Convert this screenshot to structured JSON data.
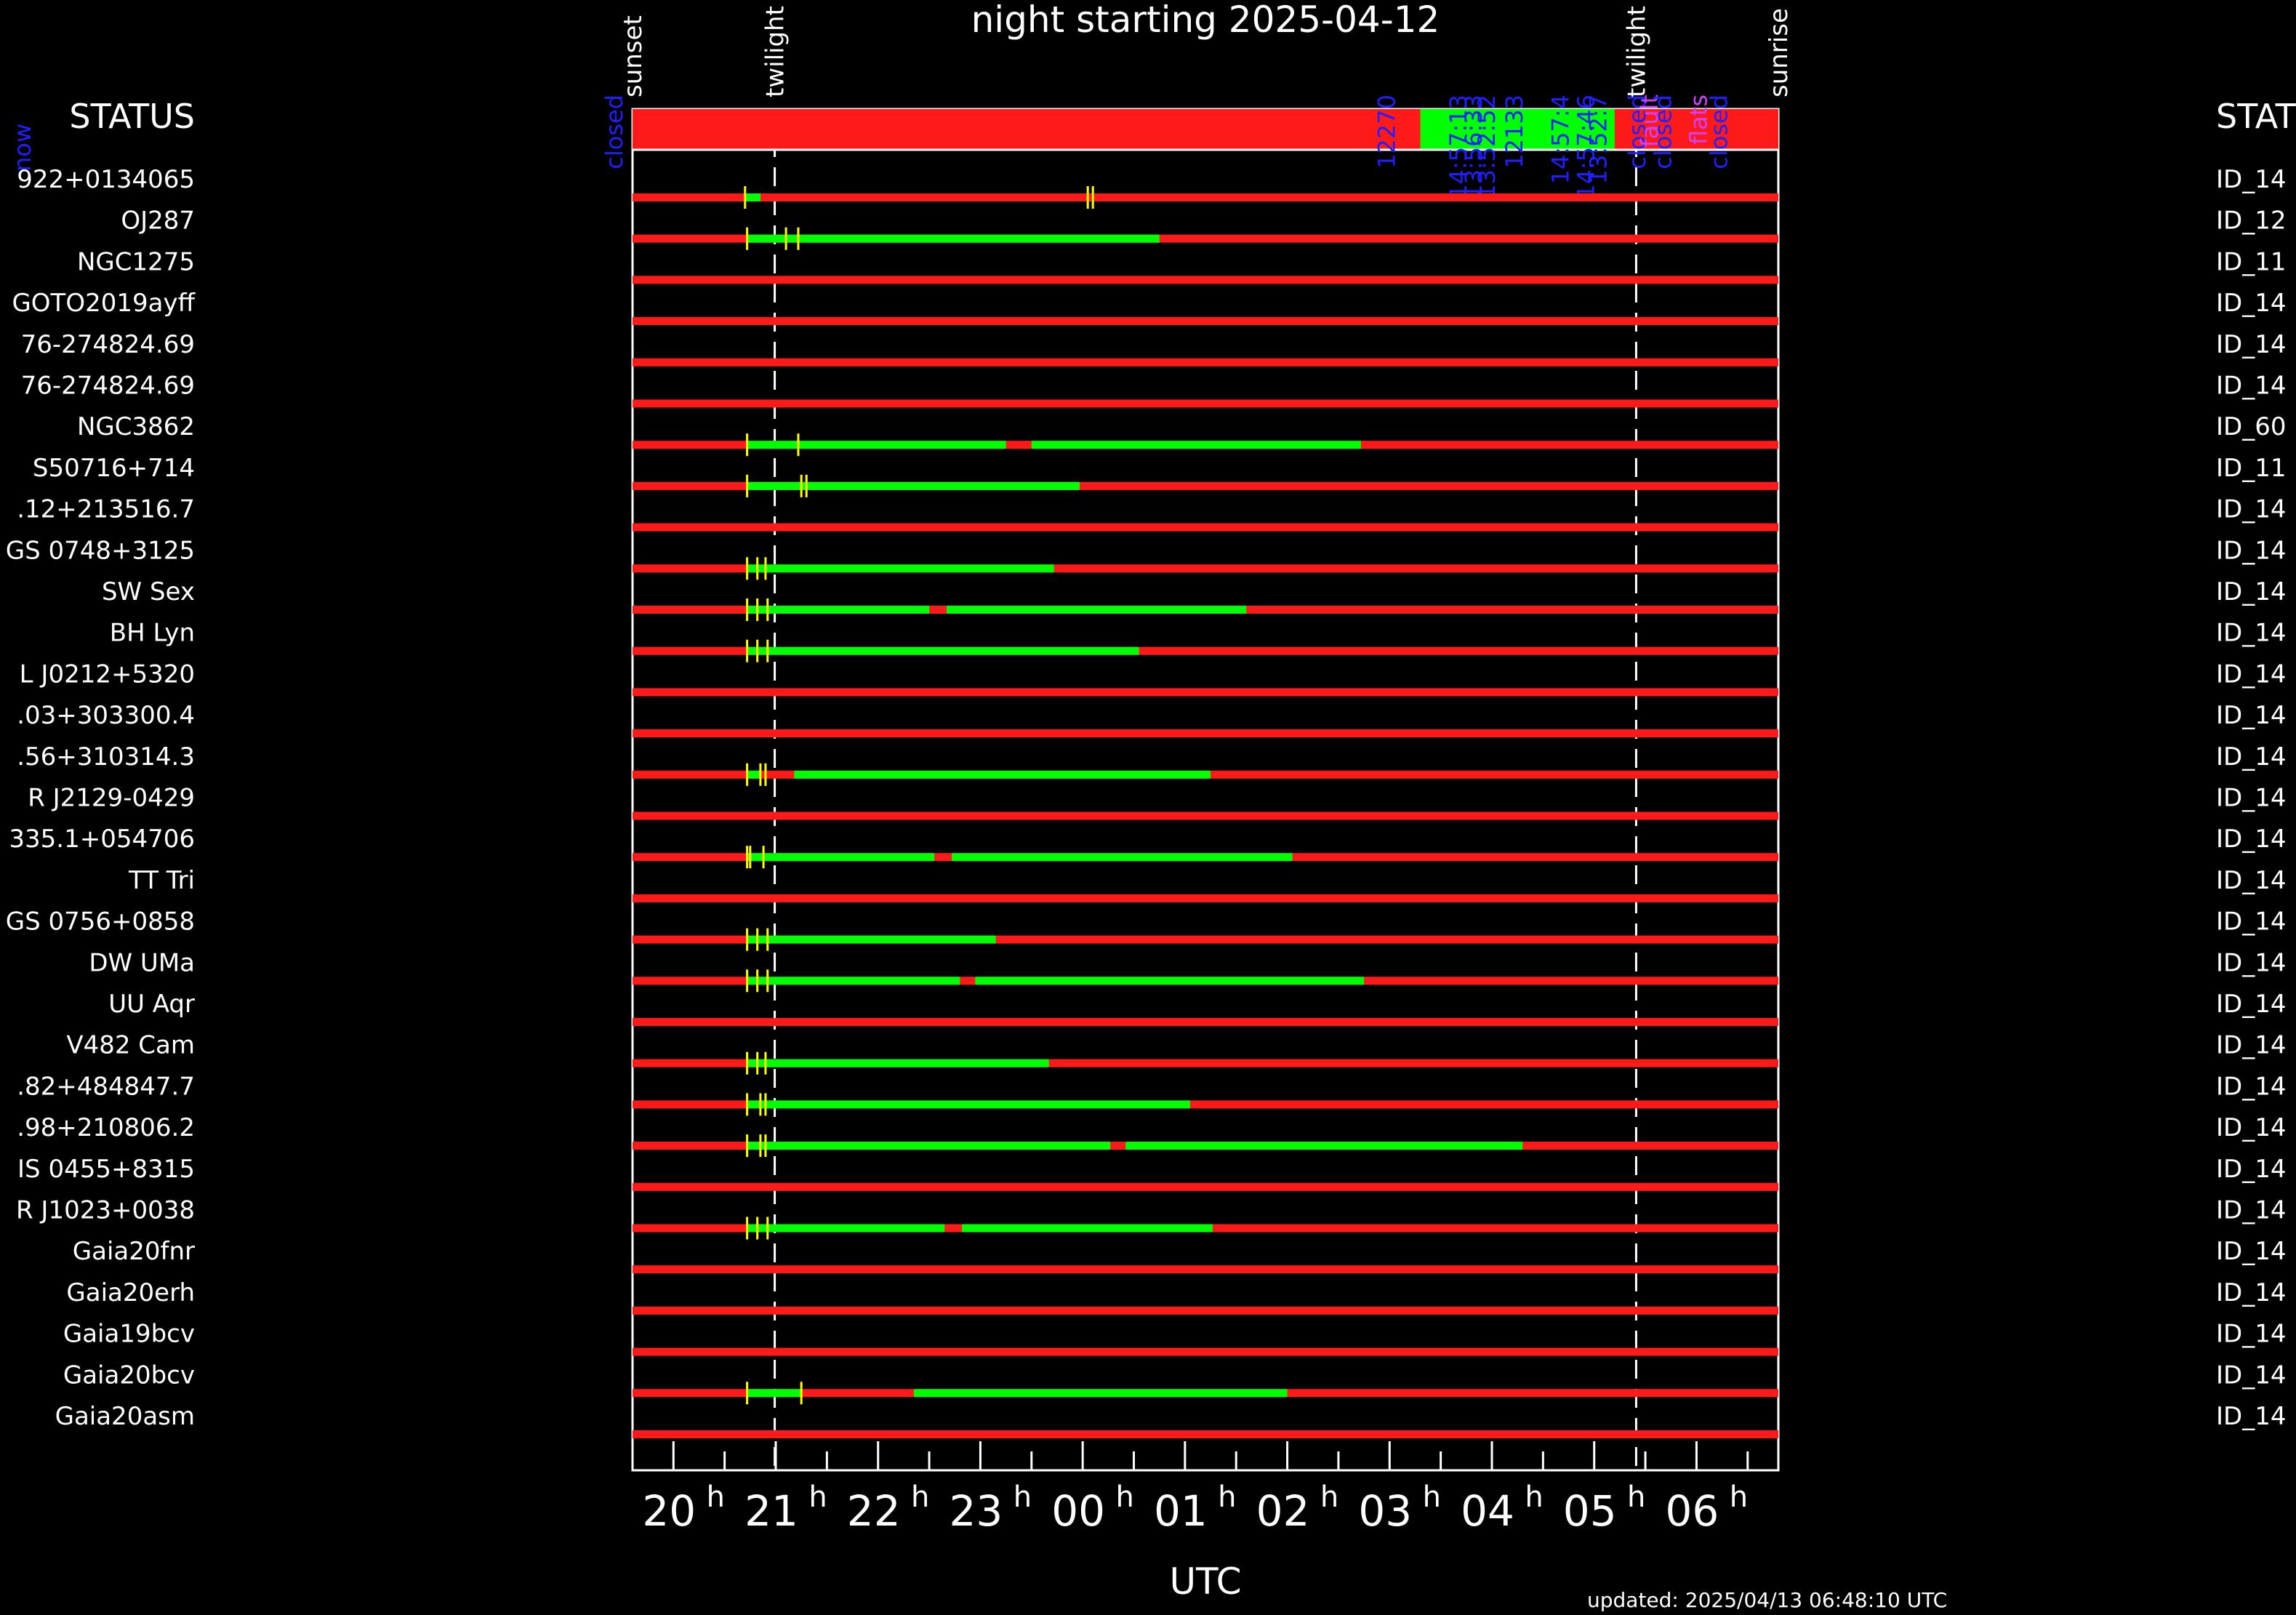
{
  "title": "night starting 2025-04-12",
  "left_header": "STATUS",
  "right_header": "STAT",
  "xlabel": "UTC",
  "updated": "updated: 2025/04/13 06:48:10 UTC",
  "colors": {
    "background": "#000000",
    "unavailable": "#ff1a1a",
    "observed": "#00ff00",
    "tick": "#ffff00",
    "status_label": "#2020ff",
    "axis": "#ffffff"
  },
  "chart_data": {
    "type": "gantt",
    "x_unit": "hours UTC (hours after 24 continue into next day)",
    "xlim": [
      19.6,
      30.8
    ],
    "tick_labels": [
      {
        "hour": 20,
        "text": "20"
      },
      {
        "hour": 21,
        "text": "21"
      },
      {
        "hour": 22,
        "text": "22"
      },
      {
        "hour": 23,
        "text": "23"
      },
      {
        "hour": 24,
        "text": "00"
      },
      {
        "hour": 25,
        "text": "01"
      },
      {
        "hour": 26,
        "text": "02"
      },
      {
        "hour": 27,
        "text": "03"
      },
      {
        "hour": 28,
        "text": "04"
      },
      {
        "hour": 29,
        "text": "05"
      },
      {
        "hour": 30,
        "text": "06"
      }
    ],
    "events": [
      {
        "label": "sunset",
        "hour": 19.6,
        "line": false
      },
      {
        "label": "twilight",
        "hour": 20.99,
        "line": true
      },
      {
        "label": "twilight",
        "hour": 29.41,
        "line": true
      },
      {
        "label": "sunrise",
        "hour": 30.8,
        "line": false
      }
    ],
    "status_bar": {
      "green_segments": [
        [
          27.3,
          29.2
        ]
      ],
      "labels": [
        {
          "text": "closed",
          "hour": 19.5,
          "color": "blue"
        },
        {
          "text": "12270",
          "hour": 27.05,
          "color": "blue"
        },
        {
          "text": "14:57:13",
          "hour": 27.75,
          "color": "blue"
        },
        {
          "text": "13:56:33",
          "hour": 27.9,
          "color": "blue"
        },
        {
          "text": "13:52:52",
          "hour": 28.03,
          "color": "blue"
        },
        {
          "text": "12133",
          "hour": 28.3,
          "color": "blue"
        },
        {
          "text": "14:57:4",
          "hour": 28.75,
          "color": "blue"
        },
        {
          "text": "14:57:46",
          "hour": 29.0,
          "color": "blue"
        },
        {
          "text": "13:52:7",
          "hour": 29.12,
          "color": "blue"
        },
        {
          "text": "closed",
          "hour": 29.5,
          "color": "blue"
        },
        {
          "text": "fault",
          "hour": 29.62,
          "color": "mag"
        },
        {
          "text": "closed",
          "hour": 29.75,
          "color": "blue"
        },
        {
          "text": "flats",
          "hour": 30.1,
          "color": "mag"
        },
        {
          "text": "closed",
          "hour": 30.3,
          "color": "blue"
        }
      ]
    },
    "left_partial_label": "now",
    "targets": [
      {
        "name": "922+0134065",
        "id": "ID_14",
        "green": [
          [
            20.7,
            20.85
          ]
        ],
        "ticks": [
          20.7,
          24.05,
          24.1
        ]
      },
      {
        "name": "OJ287",
        "id": "ID_12",
        "green": [
          [
            20.72,
            24.75
          ]
        ],
        "ticks": [
          20.72,
          21.1,
          21.22
        ]
      },
      {
        "name": "NGC1275",
        "id": "ID_11",
        "green": [],
        "ticks": []
      },
      {
        "name": "GOTO2019ayff",
        "id": "ID_14",
        "green": [],
        "ticks": []
      },
      {
        "name": "76-274824.69",
        "id": "ID_14",
        "green": [],
        "ticks": []
      },
      {
        "name": "76-274824.69",
        "id": "ID_14",
        "green": [],
        "ticks": []
      },
      {
        "name": "NGC3862",
        "id": "ID_60",
        "green": [
          [
            20.72,
            23.25
          ],
          [
            23.5,
            26.72
          ]
        ],
        "ticks": [
          20.72,
          21.22
        ]
      },
      {
        "name": "S50716+714",
        "id": "ID_11",
        "green": [
          [
            20.72,
            23.97
          ]
        ],
        "ticks": [
          20.72,
          21.25,
          21.3
        ]
      },
      {
        "name": ".12+213516.7",
        "id": "ID_14",
        "green": [],
        "ticks": []
      },
      {
        "name": "GS 0748+3125",
        "id": "ID_14",
        "green": [
          [
            20.72,
            23.72
          ]
        ],
        "ticks": [
          20.72,
          20.82,
          20.9
        ]
      },
      {
        "name": "SW Sex",
        "id": "ID_14",
        "green": [
          [
            20.72,
            22.5
          ],
          [
            22.67,
            25.6
          ]
        ],
        "ticks": [
          20.72,
          20.82,
          20.92
        ]
      },
      {
        "name": "BH Lyn",
        "id": "ID_14",
        "green": [
          [
            20.72,
            24.55
          ]
        ],
        "ticks": [
          20.72,
          20.82,
          20.92
        ]
      },
      {
        "name": "L J0212+5320",
        "id": "ID_14",
        "green": [],
        "ticks": []
      },
      {
        "name": ".03+303300.4",
        "id": "ID_14",
        "green": [],
        "ticks": []
      },
      {
        "name": ".56+310314.3",
        "id": "ID_14",
        "green": [
          [
            20.72,
            20.85
          ],
          [
            21.18,
            25.25
          ]
        ],
        "ticks": [
          20.72,
          20.85,
          20.9
        ]
      },
      {
        "name": "R J2129-0429",
        "id": "ID_14",
        "green": [],
        "ticks": []
      },
      {
        "name": "335.1+054706",
        "id": "ID_14",
        "green": [
          [
            20.72,
            22.55
          ],
          [
            22.72,
            26.05
          ]
        ],
        "ticks": [
          20.72,
          20.75,
          20.88
        ]
      },
      {
        "name": "TT Tri",
        "id": "ID_14",
        "green": [],
        "ticks": []
      },
      {
        "name": "GS 0756+0858",
        "id": "ID_14",
        "green": [
          [
            20.72,
            23.15
          ]
        ],
        "ticks": [
          20.72,
          20.82,
          20.92
        ]
      },
      {
        "name": "DW UMa",
        "id": "ID_14",
        "green": [
          [
            20.72,
            22.8
          ],
          [
            22.95,
            26.75
          ]
        ],
        "ticks": [
          20.72,
          20.82,
          20.92
        ]
      },
      {
        "name": "UU Aqr",
        "id": "ID_14",
        "green": [],
        "ticks": []
      },
      {
        "name": "V482 Cam",
        "id": "ID_14",
        "green": [
          [
            20.72,
            23.67
          ]
        ],
        "ticks": [
          20.72,
          20.82,
          20.9
        ]
      },
      {
        "name": ".82+484847.7",
        "id": "ID_14",
        "green": [
          [
            20.72,
            25.05
          ]
        ],
        "ticks": [
          20.72,
          20.85,
          20.9
        ]
      },
      {
        "name": ".98+210806.2",
        "id": "ID_14",
        "green": [
          [
            20.72,
            24.27
          ],
          [
            24.42,
            28.3
          ]
        ],
        "ticks": [
          20.72,
          20.85,
          20.9
        ]
      },
      {
        "name": "IS 0455+8315",
        "id": "ID_14",
        "green": [],
        "ticks": []
      },
      {
        "name": "R J1023+0038",
        "id": "ID_14",
        "green": [
          [
            20.72,
            22.65
          ],
          [
            22.82,
            25.27
          ]
        ],
        "ticks": [
          20.72,
          20.82,
          20.92
        ]
      },
      {
        "name": "Gaia20fnr",
        "id": "ID_14",
        "green": [],
        "ticks": []
      },
      {
        "name": "Gaia20erh",
        "id": "ID_14",
        "green": [],
        "ticks": []
      },
      {
        "name": "Gaia19bcv",
        "id": "ID_14",
        "green": [],
        "ticks": []
      },
      {
        "name": "Gaia20bcv",
        "id": "ID_14",
        "green": [
          [
            20.72,
            21.25
          ],
          [
            22.35,
            26.0
          ]
        ],
        "ticks": [
          20.72,
          21.25
        ]
      },
      {
        "name": "Gaia20asm",
        "id": "ID_14",
        "green": [],
        "ticks": []
      }
    ]
  }
}
